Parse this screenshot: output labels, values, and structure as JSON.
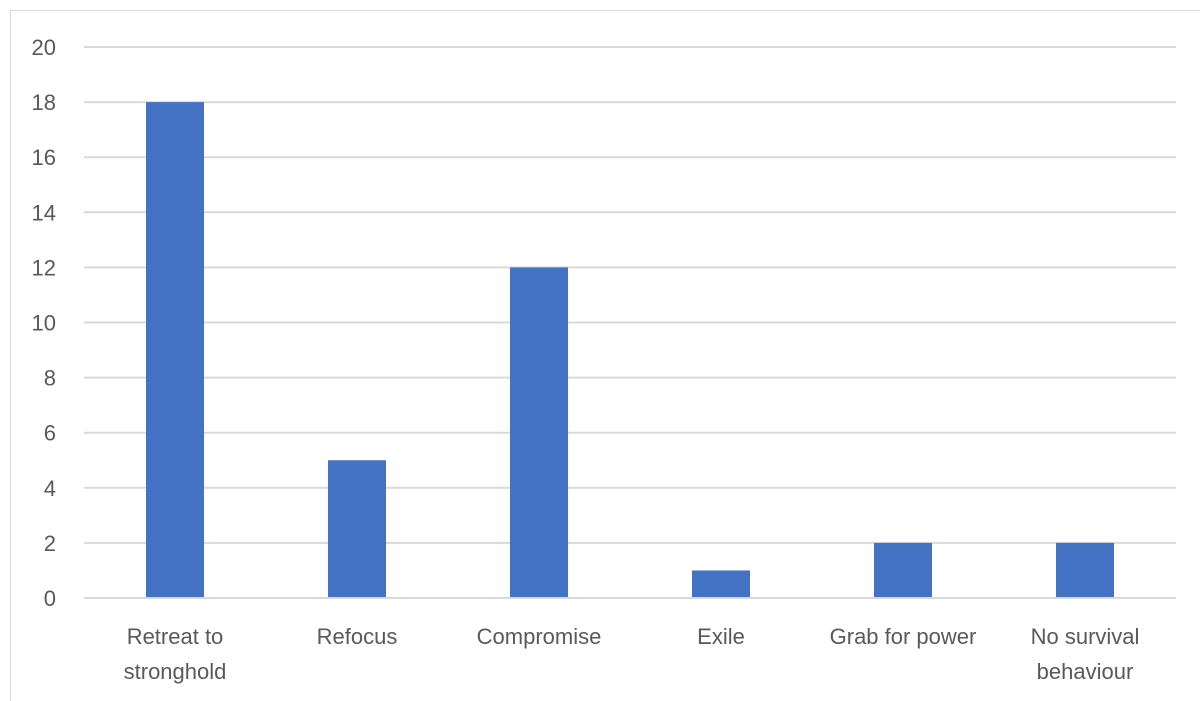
{
  "chart_data": {
    "type": "bar",
    "categories": [
      [
        "Retreat to",
        "stronghold"
      ],
      [
        "Refocus"
      ],
      [
        "Compromise"
      ],
      [
        "Exile"
      ],
      [
        "Grab for power"
      ],
      [
        "No survival",
        "behaviour"
      ]
    ],
    "values": [
      18,
      5,
      12,
      1,
      2,
      2
    ],
    "ylim": [
      0,
      20
    ],
    "yticks": [
      0,
      2,
      4,
      6,
      8,
      10,
      12,
      14,
      16,
      18,
      20
    ],
    "grid": true,
    "legend": "none",
    "bar_color": "#4472c4",
    "grid_color": "#d9d9d9",
    "axis_color": "#d9d9d9"
  }
}
